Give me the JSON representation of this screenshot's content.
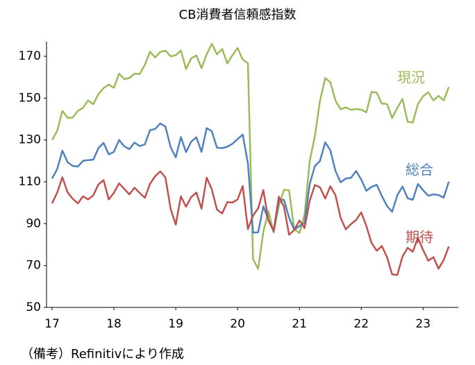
{
  "chart_data": {
    "type": "line",
    "title": "CB消費者信頼感指数",
    "source": "（備考）Refinitivにより作成",
    "categories": [
      "17",
      null,
      null,
      null,
      null,
      null,
      null,
      null,
      null,
      null,
      null,
      null,
      "18",
      null,
      null,
      null,
      null,
      null,
      null,
      null,
      null,
      null,
      null,
      null,
      "19",
      null,
      null,
      null,
      null,
      null,
      null,
      null,
      null,
      null,
      null,
      null,
      "20",
      null,
      null,
      null,
      null,
      null,
      null,
      null,
      null,
      null,
      null,
      null,
      "21",
      null,
      null,
      null,
      null,
      null,
      null,
      null,
      null,
      null,
      null,
      null,
      "22",
      null,
      null,
      null,
      null,
      null,
      null,
      null,
      null,
      null,
      null,
      null,
      "23",
      null,
      null,
      null,
      null,
      null
    ],
    "series": [
      {
        "name": "現況",
        "color": "#9bbb59",
        "values": [
          130.0,
          134.4,
          143.9,
          140.6,
          140.7,
          143.9,
          145.4,
          148.9,
          147.1,
          152.0,
          154.8,
          156.5,
          154.9,
          161.7,
          159.1,
          159.6,
          161.7,
          161.5,
          165.9,
          172.2,
          169.4,
          172.1,
          172.7,
          170.0,
          170.5,
          172.8,
          163.9,
          169.0,
          170.4,
          164.3,
          170.9,
          176.0,
          170.9,
          173.5,
          166.6,
          170.5,
          173.9,
          168.4,
          166.7,
          73.0,
          68.4,
          86.2,
          95.9,
          85.8,
          98.5,
          106.2,
          105.9,
          87.4,
          85.5,
          94.4,
          119.9,
          131.9,
          148.7,
          159.6,
          157.6,
          148.8,
          144.7,
          145.6,
          144.4,
          144.8,
          144.5,
          143.2,
          153.0,
          152.6,
          147.4,
          147.2,
          140.5,
          145.3,
          149.6,
          138.7,
          138.3,
          147.2,
          150.9,
          152.8,
          148.9,
          151.1,
          148.9,
          155.3
        ]
      },
      {
        "name": "総合",
        "color": "#4f81bd",
        "values": [
          111.6,
          116.1,
          124.9,
          119.4,
          117.6,
          117.3,
          120.0,
          120.4,
          120.6,
          126.2,
          128.6,
          123.1,
          124.3,
          130.0,
          127.0,
          125.6,
          128.8,
          127.1,
          127.9,
          134.7,
          135.3,
          137.9,
          136.4,
          126.6,
          121.7,
          131.4,
          124.2,
          129.2,
          131.3,
          124.3,
          135.7,
          134.2,
          126.3,
          126.1,
          126.8,
          128.2,
          130.4,
          132.6,
          118.8,
          85.7,
          85.9,
          98.3,
          91.7,
          86.3,
          101.3,
          101.4,
          92.9,
          87.1,
          88.9,
          90.4,
          109.0,
          117.5,
          120.0,
          128.9,
          125.1,
          115.2,
          109.8,
          111.6,
          111.9,
          115.2,
          111.1,
          105.7,
          107.6,
          108.6,
          103.2,
          98.4,
          95.7,
          103.6,
          107.8,
          102.2,
          101.4,
          109.0,
          106.0,
          103.4,
          104.0,
          103.7,
          102.5,
          110.1
        ]
      },
      {
        "name": "期待",
        "color": "#c0504d",
        "values": [
          99.7,
          104.9,
          112.2,
          105.0,
          101.9,
          99.7,
          103.1,
          101.6,
          103.6,
          108.8,
          110.8,
          101.6,
          104.7,
          109.3,
          106.6,
          104.0,
          107.2,
          104.7,
          102.4,
          109.0,
          112.7,
          115.0,
          112.1,
          97.1,
          89.6,
          103.1,
          98.1,
          102.7,
          104.9,
          97.2,
          112.0,
          106.4,
          96.8,
          94.9,
          100.3,
          100.1,
          101.6,
          108.0,
          87.4,
          93.9,
          97.4,
          106.1,
          91.4,
          86.7,
          102.9,
          98.2,
          84.7,
          87.0,
          91.5,
          87.9,
          101.0,
          108.5,
          107.4,
          102.0,
          107.9,
          103.6,
          92.8,
          87.3,
          89.8,
          91.8,
          95.4,
          88.9,
          80.8,
          77.1,
          79.3,
          74.0,
          65.8,
          65.5,
          74.3,
          78.5,
          76.6,
          83.4,
          77.5,
          72.3,
          74.0,
          68.5,
          72.6,
          79.1
        ]
      }
    ],
    "ylim": [
      50,
      177
    ],
    "yticks": [
      50,
      70,
      90,
      110,
      130,
      150,
      170
    ],
    "grid": false
  }
}
